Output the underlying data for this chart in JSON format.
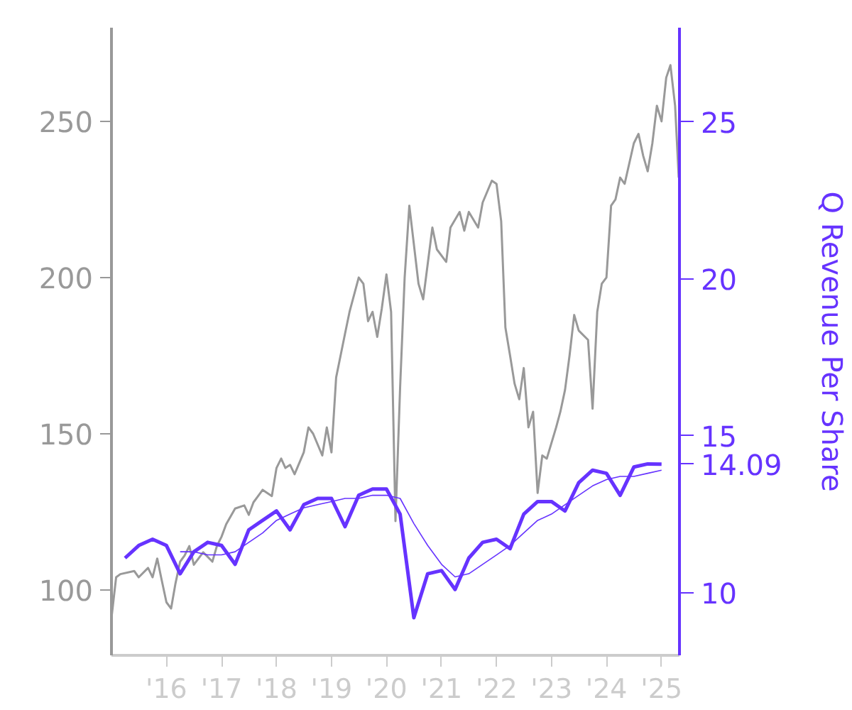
{
  "chart_data": {
    "type": "line",
    "y2label": "Q Revenue Per Share",
    "xlim": [
      "2015-01-01",
      "2025-04-30"
    ],
    "xticks": [
      {
        "value": "2016-01-01",
        "label": "'16"
      },
      {
        "value": "2017-01-01",
        "label": "'17"
      },
      {
        "value": "2018-01-01",
        "label": "'18"
      },
      {
        "value": "2019-01-01",
        "label": "'19"
      },
      {
        "value": "2020-01-01",
        "label": "'20"
      },
      {
        "value": "2021-01-01",
        "label": "'21"
      },
      {
        "value": "2022-01-01",
        "label": "'22"
      },
      {
        "value": "2023-01-01",
        "label": "'23"
      },
      {
        "value": "2024-01-01",
        "label": "'24"
      },
      {
        "value": "2025-01-01",
        "label": "'25"
      }
    ],
    "ylim": [
      79,
      280
    ],
    "yticks": [
      100,
      150,
      200,
      250
    ],
    "y2lim": [
      8,
      28
    ],
    "y2ticks": [
      10,
      15,
      20,
      25
    ],
    "grid": false,
    "series": [
      {
        "type": "line",
        "color": "#999999",
        "x": [
          "2015-01",
          "2015-02",
          "2015-03",
          "2015-06",
          "2015-07",
          "2015-09",
          "2015-10",
          "2015-11",
          "2015-12",
          "2016-01",
          "2016-02",
          "2016-03",
          "2016-04",
          "2016-05",
          "2016-06",
          "2016-07",
          "2016-08",
          "2016-09",
          "2016-11",
          "2016-12",
          "2017-01",
          "2017-02",
          "2017-04",
          "2017-06",
          "2017-07",
          "2017-08",
          "2017-09",
          "2017-10",
          "2017-12",
          "2018-01",
          "2018-02",
          "2018-03",
          "2018-04",
          "2018-05",
          "2018-07",
          "2018-08",
          "2018-09",
          "2018-11",
          "2018-12",
          "2019-01",
          "2019-02",
          "2019-04",
          "2019-05",
          "2019-07",
          "2019-08",
          "2019-09",
          "2019-10",
          "2019-11",
          "2019-12",
          "2020-01",
          "2020-02",
          "2020-03",
          "2020-04",
          "2020-05",
          "2020-06",
          "2020-08",
          "2020-09",
          "2020-11",
          "2020-12",
          "2021-02",
          "2021-03",
          "2021-05",
          "2021-06",
          "2021-07",
          "2021-09",
          "2021-10",
          "2021-12",
          "2022-01",
          "2022-02",
          "2022-03",
          "2022-04",
          "2022-05",
          "2022-06",
          "2022-07",
          "2022-08",
          "2022-09",
          "2022-10",
          "2022-11",
          "2022-12",
          "2023-02",
          "2023-03",
          "2023-04",
          "2023-05",
          "2023-06",
          "2023-07",
          "2023-09",
          "2023-10",
          "2023-11",
          "2023-12",
          "2024-01",
          "2024-02",
          "2024-03",
          "2024-04",
          "2024-05",
          "2024-07",
          "2024-08",
          "2024-09",
          "2024-10",
          "2024-11",
          "2024-12",
          "2025-01",
          "2025-02",
          "2025-03",
          "2025-04-01",
          "2025-04-25"
        ],
        "values": [
          91,
          104,
          105,
          106,
          104,
          107,
          104,
          110,
          103,
          96,
          94,
          102,
          109,
          111,
          114,
          108,
          110,
          112,
          109,
          114,
          117,
          121,
          126,
          127,
          124,
          128,
          130,
          132,
          130,
          139,
          142,
          139,
          140,
          137,
          144,
          152,
          150,
          143,
          152,
          144,
          168,
          182,
          189,
          200,
          198,
          186,
          189,
          181,
          190,
          201,
          189,
          122,
          165,
          200,
          223,
          198,
          193,
          216,
          209,
          205,
          216,
          221,
          215,
          221,
          216,
          224,
          231,
          230,
          218,
          184,
          175,
          166,
          161,
          171,
          152,
          157,
          131,
          143,
          142,
          152,
          157,
          164,
          175,
          188,
          183,
          180,
          158,
          189,
          198,
          200,
          223,
          225,
          232,
          230,
          243,
          246,
          239,
          234,
          243,
          255,
          250,
          264,
          268,
          255,
          232
        ]
      },
      {
        "type": "line",
        "color": "#6633ff",
        "axis": "y2",
        "x": [
          "2015-04",
          "2015-07",
          "2015-10",
          "2016-01",
          "2016-04",
          "2016-07",
          "2016-10",
          "2017-01",
          "2017-04",
          "2017-07",
          "2017-10",
          "2018-01",
          "2018-04",
          "2018-07",
          "2018-10",
          "2019-01",
          "2019-04",
          "2019-07",
          "2019-10",
          "2020-01",
          "2020-04",
          "2020-07",
          "2020-10",
          "2021-01",
          "2021-04",
          "2021-07",
          "2021-10",
          "2022-01",
          "2022-04",
          "2022-07",
          "2022-10",
          "2023-01",
          "2023-04",
          "2023-07",
          "2023-10",
          "2024-01",
          "2024-04",
          "2024-07",
          "2024-10",
          "2025-01"
        ],
        "values": [
          11.1,
          11.5,
          11.7,
          11.5,
          10.6,
          11.3,
          11.6,
          11.5,
          10.9,
          12.0,
          12.3,
          12.6,
          12.0,
          12.8,
          13.0,
          13.0,
          12.1,
          13.1,
          13.3,
          13.3,
          12.5,
          9.2,
          10.6,
          10.7,
          10.1,
          11.1,
          11.6,
          11.7,
          11.4,
          12.5,
          12.9,
          12.9,
          12.6,
          13.5,
          13.9,
          13.8,
          13.1,
          14.0,
          14.1,
          14.09
        ],
        "value_labels": [
          null,
          null,
          null,
          null,
          null,
          null,
          null,
          null,
          null,
          null,
          null,
          null,
          null,
          null,
          null,
          null,
          null,
          null,
          null,
          null,
          null,
          null,
          null,
          null,
          null,
          null,
          null,
          null,
          null,
          null,
          null,
          null,
          null,
          null,
          null,
          null,
          null,
          null,
          null,
          "14.09"
        ]
      },
      {
        "type": "line",
        "color": "#6633ff",
        "axis": "y2",
        "x": [
          "2016-04",
          "2016-07",
          "2016-10",
          "2017-01",
          "2017-04",
          "2017-07",
          "2017-10",
          "2018-01",
          "2018-04",
          "2018-07",
          "2018-10",
          "2019-01",
          "2019-04",
          "2019-07",
          "2019-10",
          "2020-01",
          "2020-04",
          "2020-07",
          "2020-10",
          "2021-01",
          "2021-04",
          "2021-07",
          "2021-10",
          "2022-01",
          "2022-04",
          "2022-07",
          "2022-10",
          "2023-01",
          "2023-04",
          "2023-07",
          "2023-10",
          "2024-01",
          "2024-04",
          "2024-07",
          "2024-10",
          "2025-01"
        ],
        "values": [
          11.3,
          11.3,
          11.2,
          11.2,
          11.3,
          11.6,
          11.9,
          12.3,
          12.5,
          12.7,
          12.8,
          12.9,
          13.0,
          13.0,
          13.1,
          13.1,
          13.0,
          12.2,
          11.5,
          10.9,
          10.5,
          10.6,
          10.9,
          11.2,
          11.5,
          11.9,
          12.3,
          12.5,
          12.8,
          13.1,
          13.4,
          13.6,
          13.7,
          13.7,
          13.8,
          13.9
        ]
      }
    ]
  }
}
